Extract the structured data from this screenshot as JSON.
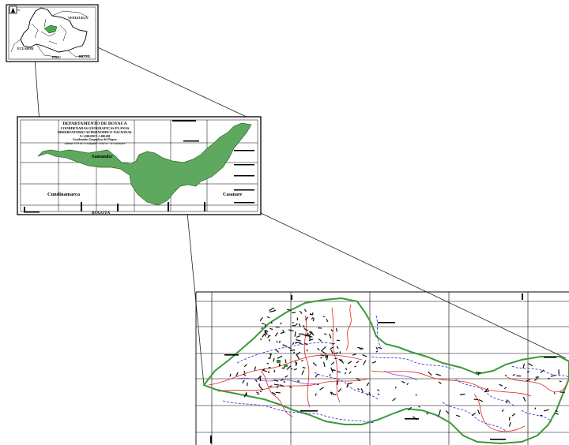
{
  "country_inset": {
    "north_marker": "N",
    "labels": {
      "venezuela": "VENEZUELA",
      "ecuador": "ECUADOR",
      "peru": "PERU",
      "brasil": "BRASIL"
    }
  },
  "department_map": {
    "title": "DEPARTAMENTO DE BOYACA",
    "subtitle_1": "COORDENADAS GEOGRAFICAS PLANAS",
    "subtitle_2": "OBSERVATORIO ASTRONOMICO NACIONAL",
    "coords_line_1": "X=1.000.000          Y=1.000.000",
    "coords_line_2": "Coordenadas Geograficas del Origen:",
    "coords_line_3": "Latitud: 4°35'56\"N    Longitud: 74°04'51\" W Greenwich",
    "labels": {
      "santander": "Santander",
      "cundinamarca": "Cundinamarca",
      "casanare": "Casanare",
      "bogota": "BOGOTA"
    }
  },
  "colors": {
    "department_fill": "#5fa85f",
    "boundary_green": "#3a9a3a",
    "red_lines": "#e02020",
    "blue_lines": "#2030d0",
    "dark_marks": "#101010"
  }
}
